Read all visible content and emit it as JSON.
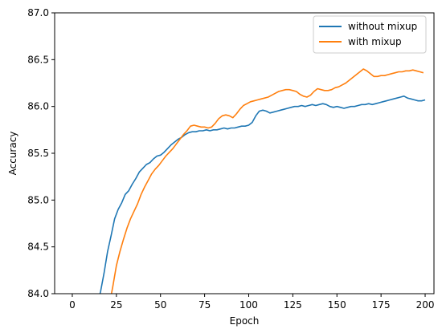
{
  "chart_data": {
    "type": "line",
    "title": "",
    "xlabel": "Epoch",
    "ylabel": "Accuracy",
    "xlim": [
      -10,
      205
    ],
    "ylim": [
      84.0,
      87.0
    ],
    "x_ticks": [
      0,
      25,
      50,
      75,
      100,
      125,
      150,
      175,
      200
    ],
    "y_ticks": [
      84.0,
      84.5,
      85.0,
      85.5,
      86.0,
      86.5,
      87.0
    ],
    "x_tick_labels": [
      "0",
      "25",
      "50",
      "75",
      "100",
      "125",
      "150",
      "175",
      "200"
    ],
    "y_tick_labels": [
      "84.0",
      "84.5",
      "85.0",
      "85.5",
      "86.0",
      "86.5",
      "87.0"
    ],
    "grid": false,
    "legend": {
      "position": "top-right"
    },
    "series": [
      {
        "name": "without mixup",
        "color": "#1f77b4",
        "x": [
          15,
          16,
          18,
          20,
          22,
          24,
          26,
          28,
          30,
          32,
          34,
          36,
          38,
          40,
          42,
          44,
          46,
          48,
          50,
          52,
          54,
          56,
          58,
          60,
          62,
          64,
          66,
          68,
          70,
          72,
          74,
          76,
          78,
          80,
          82,
          84,
          86,
          88,
          90,
          92,
          94,
          96,
          98,
          100,
          102,
          104,
          106,
          108,
          110,
          112,
          114,
          116,
          118,
          120,
          122,
          124,
          126,
          128,
          130,
          132,
          134,
          136,
          138,
          140,
          142,
          144,
          146,
          148,
          150,
          152,
          154,
          156,
          158,
          160,
          162,
          164,
          166,
          168,
          170,
          172,
          174,
          176,
          178,
          180,
          182,
          184,
          186,
          188,
          190,
          192,
          194,
          196,
          198,
          200
        ],
        "values": [
          83.95,
          84.02,
          84.22,
          84.45,
          84.62,
          84.8,
          84.9,
          84.97,
          85.06,
          85.1,
          85.17,
          85.23,
          85.3,
          85.34,
          85.38,
          85.4,
          85.44,
          85.47,
          85.48,
          85.51,
          85.55,
          85.59,
          85.62,
          85.65,
          85.67,
          85.7,
          85.72,
          85.73,
          85.73,
          85.74,
          85.74,
          85.75,
          85.74,
          85.75,
          85.75,
          85.76,
          85.77,
          85.76,
          85.77,
          85.77,
          85.78,
          85.79,
          85.79,
          85.8,
          85.83,
          85.9,
          85.95,
          85.96,
          85.95,
          85.93,
          85.94,
          85.95,
          85.96,
          85.97,
          85.98,
          85.99,
          86.0,
          86.0,
          86.01,
          86.0,
          86.01,
          86.02,
          86.01,
          86.02,
          86.03,
          86.02,
          86.0,
          85.99,
          86.0,
          85.99,
          85.98,
          85.99,
          86.0,
          86.0,
          86.01,
          86.02,
          86.02,
          86.03,
          86.02,
          86.03,
          86.04,
          86.05,
          86.06,
          86.07,
          86.08,
          86.09,
          86.1,
          86.11,
          86.09,
          86.08,
          86.07,
          86.06,
          86.06,
          86.07
        ]
      },
      {
        "name": "with mixup",
        "color": "#ff7f0e",
        "x": [
          22,
          23,
          25,
          27,
          29,
          31,
          33,
          35,
          37,
          39,
          41,
          43,
          45,
          47,
          49,
          51,
          53,
          55,
          57,
          59,
          61,
          63,
          65,
          67,
          69,
          71,
          73,
          75,
          77,
          79,
          81,
          83,
          85,
          87,
          89,
          91,
          93,
          95,
          97,
          99,
          101,
          103,
          105,
          107,
          109,
          111,
          113,
          115,
          117,
          119,
          121,
          123,
          125,
          127,
          129,
          131,
          133,
          135,
          137,
          139,
          141,
          143,
          145,
          147,
          149,
          151,
          153,
          155,
          157,
          159,
          161,
          163,
          165,
          167,
          169,
          171,
          173,
          175,
          177,
          179,
          181,
          183,
          185,
          187,
          189,
          191,
          193,
          195,
          197,
          199
        ],
        "values": [
          83.98,
          84.08,
          84.3,
          84.45,
          84.58,
          84.7,
          84.8,
          84.88,
          84.96,
          85.06,
          85.14,
          85.21,
          85.28,
          85.33,
          85.37,
          85.42,
          85.47,
          85.51,
          85.55,
          85.6,
          85.65,
          85.7,
          85.74,
          85.79,
          85.8,
          85.79,
          85.78,
          85.78,
          85.77,
          85.78,
          85.82,
          85.87,
          85.9,
          85.91,
          85.9,
          85.88,
          85.92,
          85.97,
          86.01,
          86.03,
          86.05,
          86.06,
          86.07,
          86.08,
          86.09,
          86.1,
          86.12,
          86.14,
          86.16,
          86.17,
          86.18,
          86.18,
          86.17,
          86.16,
          86.13,
          86.11,
          86.1,
          86.12,
          86.16,
          86.19,
          86.18,
          86.17,
          86.17,
          86.18,
          86.2,
          86.21,
          86.23,
          86.25,
          86.28,
          86.31,
          86.34,
          86.37,
          86.4,
          86.38,
          86.35,
          86.32,
          86.32,
          86.33,
          86.33,
          86.34,
          86.35,
          86.36,
          86.37,
          86.37,
          86.38,
          86.38,
          86.39,
          86.38,
          86.37,
          86.36
        ]
      }
    ]
  }
}
